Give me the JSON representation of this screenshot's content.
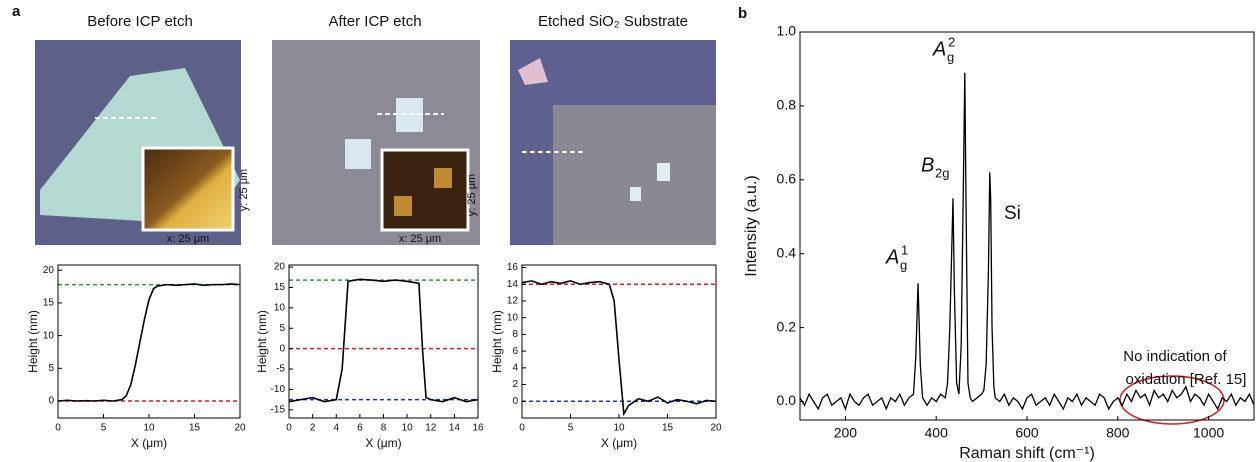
{
  "panel_labels": [
    "a",
    "b"
  ],
  "images": [
    {
      "title": "Before ICP etch",
      "scale_x": "x: 25 μm",
      "scale_y": "y: 25 μm"
    },
    {
      "title": "After ICP etch",
      "scale_x": "x: 25 μm",
      "scale_y": "y: 25 μm"
    },
    {
      "title": "Etched SiO₂ Substrate"
    }
  ],
  "chart_data": [
    {
      "type": "line",
      "xlabel": "X (μm)",
      "ylabel": "Height (nm)",
      "color": "#000000",
      "x": [
        0,
        1,
        2,
        3,
        4,
        5,
        6,
        7,
        7.5,
        8,
        8.5,
        9,
        9.5,
        10,
        10.5,
        11,
        12,
        13,
        14,
        15,
        16,
        17,
        18,
        19,
        20
      ],
      "values": [
        0,
        0.1,
        0,
        0.05,
        0,
        0.1,
        0,
        0.2,
        0.8,
        2.5,
        5.5,
        9,
        12.5,
        15.5,
        17.2,
        17.6,
        17.8,
        17.7,
        17.8,
        17.9,
        17.7,
        17.8,
        17.8,
        17.9,
        17.8
      ],
      "xlim": [
        0,
        20
      ],
      "xticks": [
        0,
        5,
        10,
        15,
        20
      ],
      "ylim": [
        -2.6,
        20.8
      ],
      "yticks": [
        0,
        5,
        10,
        15,
        20
      ],
      "hlines": [
        {
          "value": 17.8,
          "color": "#2e9a2e"
        },
        {
          "value": 0,
          "color": "#d62020"
        }
      ]
    },
    {
      "type": "line",
      "xlabel": "X (μm)",
      "ylabel": "Height (nm)",
      "color": "#000000",
      "x": [
        0,
        1,
        2,
        3,
        4,
        4.5,
        5,
        6,
        7,
        8,
        9,
        10,
        11,
        11.3,
        11.6,
        12,
        13,
        14,
        15,
        16
      ],
      "values": [
        -13,
        -12.5,
        -12,
        -13,
        -12.5,
        -5,
        16.5,
        17,
        16.8,
        16.5,
        16.8,
        16.5,
        16,
        0,
        -12,
        -12.5,
        -13,
        -12,
        -13,
        -12.5
      ],
      "xlim": [
        0,
        16
      ],
      "xticks": [
        0,
        2,
        4,
        6,
        8,
        10,
        12,
        14,
        16
      ],
      "ylim": [
        -17,
        20.5
      ],
      "yticks": [
        -15,
        -10,
        -5,
        0,
        5,
        10,
        15,
        20
      ],
      "hlines": [
        {
          "value": 16.8,
          "color": "#2e9a2e"
        },
        {
          "value": 0,
          "color": "#d62020"
        },
        {
          "value": -12.5,
          "color": "#2030c0"
        }
      ]
    },
    {
      "type": "line",
      "xlabel": "X (μm)",
      "ylabel": "Height (nm)",
      "color": "#000000",
      "x": [
        0,
        1,
        2,
        3,
        4,
        5,
        6,
        7,
        8,
        9,
        9.5,
        10,
        10.5,
        11,
        12,
        13,
        14,
        15,
        16,
        17,
        18,
        19,
        20
      ],
      "values": [
        14.2,
        14.4,
        14,
        14.3,
        14.1,
        14.4,
        14,
        14.2,
        14.3,
        14,
        12,
        5,
        -1.5,
        -0.5,
        0.3,
        0,
        0.5,
        -0.2,
        0.2,
        0,
        -0.3,
        0.1,
        0
      ],
      "xlim": [
        0,
        20
      ],
      "xticks": [
        0,
        5,
        10,
        15,
        20
      ],
      "ylim": [
        -2,
        16.3
      ],
      "yticks": [
        0,
        2,
        4,
        6,
        8,
        10,
        12,
        14,
        16
      ],
      "hlines": [
        {
          "value": 14,
          "color": "#d62020"
        },
        {
          "value": 0,
          "color": "#2030c0"
        }
      ]
    },
    {
      "type": "line",
      "xlabel": "Raman shift (cm⁻¹)",
      "ylabel": "Intensity (a.u.)",
      "color": "#000000",
      "x": [
        100,
        110,
        120,
        130,
        140,
        150,
        160,
        170,
        180,
        190,
        200,
        210,
        220,
        230,
        240,
        250,
        260,
        270,
        280,
        290,
        300,
        310,
        320,
        330,
        340,
        350,
        355,
        360,
        365,
        370,
        380,
        390,
        400,
        410,
        420,
        425,
        430,
        435,
        437,
        440,
        445,
        450,
        455,
        460,
        463,
        466,
        470,
        475,
        480,
        490,
        500,
        505,
        510,
        515,
        518,
        520,
        523,
        527,
        530,
        540,
        550,
        560,
        570,
        580,
        590,
        600,
        610,
        620,
        630,
        640,
        650,
        660,
        670,
        680,
        690,
        700,
        710,
        720,
        730,
        740,
        750,
        760,
        770,
        780,
        790,
        800,
        810,
        820,
        830,
        840,
        850,
        860,
        870,
        880,
        890,
        900,
        910,
        920,
        930,
        940,
        950,
        960,
        970,
        980,
        990,
        1000,
        1010,
        1020,
        1030,
        1040,
        1050,
        1060,
        1070,
        1080,
        1090,
        1100
      ],
      "values": [
        0.01,
        -0.01,
        0.02,
        0,
        -0.02,
        0.01,
        0.02,
        -0.01,
        0,
        0.01,
        -0.02,
        0.02,
        0,
        -0.01,
        0.01,
        0.02,
        -0.01,
        0,
        0.01,
        -0.02,
        0.01,
        0,
        0.02,
        -0.01,
        0.01,
        0.02,
        0.12,
        0.32,
        0.1,
        0.01,
        -0.01,
        0.01,
        0,
        0.02,
        0.01,
        0.05,
        0.2,
        0.45,
        0.55,
        0.3,
        0.05,
        0.02,
        0.15,
        0.6,
        0.89,
        0.5,
        0.05,
        0.01,
        0,
        0.01,
        0.02,
        0.03,
        0.1,
        0.35,
        0.62,
        0.55,
        0.2,
        0.04,
        0.01,
        0,
        0.02,
        -0.01,
        0.01,
        0,
        -0.02,
        0.01,
        0.02,
        -0.01,
        0,
        0.01,
        -0.01,
        0.02,
        0,
        -0.02,
        0.01,
        0,
        0.02,
        -0.01,
        0.01,
        0,
        -0.01,
        0.02,
        0.01,
        -0.02,
        0,
        0.01,
        -0.01,
        0.02,
        0,
        0.03,
        0.01,
        0.02,
        -0.01,
        0.03,
        0.01,
        0.02,
        0,
        0.03,
        0.01,
        0.02,
        0.04,
        0,
        0.02,
        0.01,
        -0.01,
        0.02,
        0,
        -0.02,
        0.01,
        0,
        0.02,
        -0.01,
        0.01,
        0,
        0.02,
        -0.01
      ],
      "xlim": [
        100,
        1100
      ],
      "xticks": [
        200,
        400,
        600,
        800,
        1000
      ],
      "ylim": [
        -0.05,
        1.0
      ],
      "yticks": [
        {
          "value": 0,
          "label": "0.0"
        },
        0.2,
        0.4,
        0.6,
        0.8,
        {
          "value": 1,
          "label": "1.0"
        }
      ],
      "peaks": [
        {
          "base": "A",
          "sub": "g",
          "sup": "1"
        },
        {
          "base": "B",
          "sub": "2g"
        },
        {
          "base": "A",
          "sub": "g",
          "sup": "2"
        }
      ],
      "annotations": [
        "Si",
        "No indication of",
        "oxidation [Ref. 15]"
      ]
    }
  ]
}
